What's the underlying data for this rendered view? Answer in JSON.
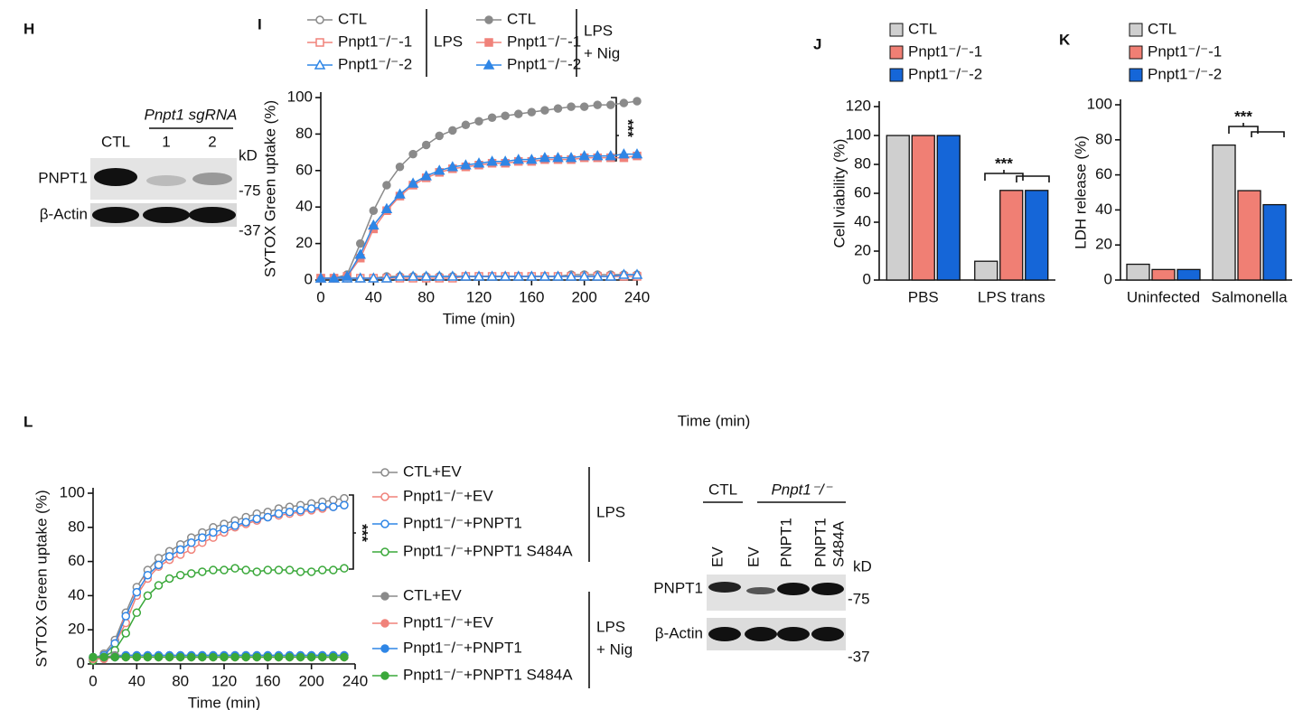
{
  "stray_label": "Time (min)",
  "blots": [
    {
      "panel": "H",
      "header": "Pnpt1 sgRNA",
      "lanes": [
        [
          "CTL"
        ],
        [
          "1"
        ],
        [
          "2"
        ]
      ],
      "unit": "kD",
      "rows": [
        "PNPT1",
        "β-Actin"
      ],
      "markers": [
        "-75",
        "-37"
      ]
    },
    {
      "groups": [
        "CTL",
        "Pnpt1⁻/⁻"
      ],
      "lanes": [
        [
          "EV"
        ],
        [
          "EV"
        ],
        [
          "PNPT1"
        ],
        [
          "PNPT1",
          "S484A"
        ]
      ],
      "unit": "kD",
      "rows": [
        "PNPT1",
        "β-Actin"
      ],
      "markers": [
        "-75",
        "-37"
      ]
    }
  ],
  "chart_data": [
    {
      "type": "line",
      "panel": "I",
      "x_label": "Time (min)",
      "y_label": "SYTOX Green uptake (%)",
      "xlim": [
        0,
        240
      ],
      "xticks": [
        0,
        40,
        80,
        120,
        160,
        200,
        240
      ],
      "ylim": [
        0,
        100
      ],
      "yticks": [
        0,
        20,
        40,
        60,
        80,
        100
      ],
      "legend_groups": [
        [
          "LPS"
        ],
        [
          "LPS",
          "+ Nig"
        ]
      ],
      "annotations": [
        "***"
      ],
      "x": [
        0,
        10,
        20,
        30,
        40,
        50,
        60,
        70,
        80,
        90,
        100,
        110,
        120,
        130,
        140,
        150,
        160,
        170,
        180,
        190,
        200,
        210,
        220,
        230,
        240
      ],
      "series": [
        {
          "name": "CTL",
          "color": "#8a8a8a",
          "marker": "circle",
          "filled": false,
          "values": [
            1,
            1,
            1,
            1,
            1,
            2,
            2,
            2,
            2,
            2,
            2,
            2,
            2,
            2,
            2,
            2,
            2,
            2,
            2,
            3,
            3,
            3,
            3,
            3,
            3
          ]
        },
        {
          "name": "Pnpt1⁻/⁻-1",
          "color": "#f0827a",
          "marker": "square",
          "filled": false,
          "values": [
            1,
            1,
            1,
            1,
            1,
            1,
            1,
            1,
            1,
            1,
            1,
            2,
            2,
            2,
            2,
            2,
            2,
            2,
            2,
            2,
            2,
            2,
            2,
            2,
            2
          ]
        },
        {
          "name": "Pnpt1⁻/⁻-2",
          "color": "#2f86e6",
          "marker": "triangle",
          "filled": false,
          "values": [
            1,
            1,
            1,
            1,
            1,
            1,
            2,
            2,
            2,
            2,
            2,
            2,
            2,
            2,
            2,
            2,
            2,
            2,
            2,
            2,
            2,
            2,
            2,
            3,
            3
          ]
        },
        {
          "name": "CTL",
          "color": "#8a8a8a",
          "marker": "circle",
          "filled": true,
          "values": [
            1,
            1,
            3,
            20,
            38,
            52,
            62,
            69,
            74,
            79,
            82,
            85,
            87,
            89,
            90,
            91,
            92,
            93,
            94,
            95,
            95,
            96,
            96,
            97,
            98
          ]
        },
        {
          "name": "Pnpt1⁻/⁻-1",
          "color": "#f0827a",
          "marker": "square",
          "filled": true,
          "values": [
            1,
            1,
            2,
            12,
            28,
            38,
            46,
            52,
            56,
            59,
            61,
            62,
            63,
            64,
            64,
            65,
            65,
            66,
            66,
            66,
            67,
            67,
            67,
            67,
            68
          ]
        },
        {
          "name": "Pnpt1⁻/⁻-2",
          "color": "#2f86e6",
          "marker": "triangle",
          "filled": true,
          "values": [
            1,
            1,
            2,
            14,
            30,
            39,
            47,
            53,
            57,
            60,
            62,
            63,
            64,
            65,
            65,
            66,
            66,
            67,
            67,
            67,
            68,
            68,
            68,
            69,
            69
          ]
        }
      ]
    },
    {
      "type": "bar",
      "panel": "J",
      "y_label": "Cell viability (%)",
      "ylim": [
        0,
        120
      ],
      "yticks": [
        0,
        20,
        40,
        60,
        80,
        100,
        120
      ],
      "categories": [
        "PBS",
        "LPS trans"
      ],
      "annotations": [
        "***"
      ],
      "series": [
        {
          "name": "CTL",
          "color": "#cfcfcf",
          "values": [
            100,
            13
          ]
        },
        {
          "name": "Pnpt1⁻/⁻-1",
          "color": "#f07f74",
          "values": [
            100,
            62
          ]
        },
        {
          "name": "Pnpt1⁻/⁻-2",
          "color": "#1566d8",
          "values": [
            100,
            62
          ]
        }
      ]
    },
    {
      "type": "bar",
      "panel": "K",
      "y_label": "LDH release (%)",
      "ylim": [
        0,
        100
      ],
      "yticks": [
        0,
        20,
        40,
        60,
        80,
        100
      ],
      "categories": [
        "Uninfected",
        "Salmonella"
      ],
      "annotations": [
        "***"
      ],
      "series": [
        {
          "name": "CTL",
          "color": "#cfcfcf",
          "values": [
            9,
            77
          ]
        },
        {
          "name": "Pnpt1⁻/⁻-1",
          "color": "#f07f74",
          "values": [
            6,
            51
          ]
        },
        {
          "name": "Pnpt1⁻/⁻-2",
          "color": "#1566d8",
          "values": [
            6,
            43
          ]
        }
      ]
    },
    {
      "type": "line",
      "panel": "L",
      "x_label": "Time (min)",
      "y_label": "SYTOX Green uptake (%)",
      "xlim": [
        0,
        240
      ],
      "xticks": [
        0,
        40,
        80,
        120,
        160,
        200,
        240
      ],
      "ylim": [
        0,
        100
      ],
      "yticks": [
        0,
        20,
        40,
        60,
        80,
        100
      ],
      "legend_groups": [
        [
          "LPS"
        ],
        [
          "LPS",
          "+ Nig"
        ]
      ],
      "annotations": [
        "***"
      ],
      "x": [
        0,
        10,
        20,
        30,
        40,
        50,
        60,
        70,
        80,
        90,
        100,
        110,
        120,
        130,
        140,
        150,
        160,
        170,
        180,
        190,
        200,
        210,
        220,
        230
      ],
      "series": [
        {
          "name": "CTL+EV",
          "color": "#8a8a8a",
          "marker": "circle",
          "filled": false,
          "values": [
            3,
            6,
            14,
            30,
            45,
            55,
            62,
            66,
            70,
            74,
            77,
            80,
            82,
            84,
            86,
            88,
            89,
            91,
            92,
            93,
            94,
            95,
            96,
            97
          ]
        },
        {
          "name": "Pnpt1⁻/⁻+EV",
          "color": "#f0827a",
          "marker": "circle",
          "filled": false,
          "values": [
            3,
            5,
            12,
            24,
            40,
            50,
            57,
            61,
            64,
            67,
            71,
            74,
            77,
            80,
            82,
            84,
            86,
            87,
            88,
            89,
            90,
            91,
            92,
            93
          ]
        },
        {
          "name": "Pnpt1⁻/⁻+PNPT1",
          "color": "#2f86e6",
          "marker": "circle",
          "filled": false,
          "values": [
            3,
            5,
            12,
            28,
            42,
            52,
            58,
            63,
            67,
            71,
            74,
            77,
            79,
            81,
            83,
            85,
            86,
            88,
            89,
            90,
            91,
            92,
            92,
            93
          ]
        },
        {
          "name": "Pnpt1⁻/⁻+PNPT1 S484A",
          "color": "#3aa83a",
          "marker": "circle",
          "filled": false,
          "values": [
            2,
            4,
            8,
            18,
            30,
            40,
            46,
            50,
            52,
            53,
            54,
            55,
            55,
            56,
            55,
            54,
            55,
            55,
            55,
            54,
            54,
            55,
            55,
            56
          ]
        },
        {
          "name": "CTL+EV",
          "color": "#8a8a8a",
          "marker": "circle",
          "filled": true,
          "values": [
            4,
            4,
            5,
            5,
            5,
            5,
            5,
            5,
            5,
            5,
            5,
            5,
            5,
            5,
            5,
            5,
            5,
            5,
            5,
            5,
            5,
            5,
            5,
            5
          ]
        },
        {
          "name": "Pnpt1⁻/⁻+EV",
          "color": "#f0827a",
          "marker": "circle",
          "filled": true,
          "values": [
            3,
            3,
            4,
            4,
            4,
            4,
            4,
            4,
            4,
            4,
            4,
            4,
            4,
            4,
            4,
            4,
            4,
            4,
            4,
            4,
            4,
            4,
            4,
            4
          ]
        },
        {
          "name": "Pnpt1⁻/⁻+PNPT1",
          "color": "#2f86e6",
          "marker": "circle",
          "filled": true,
          "values": [
            4,
            4,
            4,
            5,
            5,
            5,
            5,
            5,
            5,
            5,
            5,
            5,
            5,
            5,
            5,
            5,
            5,
            5,
            5,
            5,
            5,
            5,
            5,
            5
          ]
        },
        {
          "name": "Pnpt1⁻/⁻+PNPT1 S484A",
          "color": "#3aa83a",
          "marker": "circle",
          "filled": true,
          "values": [
            4,
            4,
            4,
            4,
            4,
            4,
            4,
            4,
            4,
            4,
            4,
            4,
            4,
            4,
            4,
            4,
            4,
            4,
            4,
            4,
            4,
            4,
            4,
            4
          ]
        }
      ]
    }
  ]
}
